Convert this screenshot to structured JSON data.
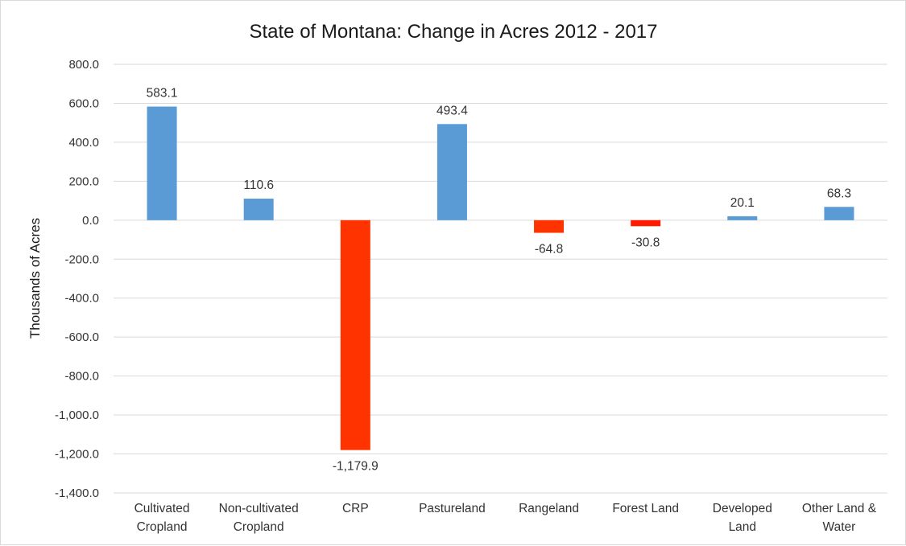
{
  "chart_data": {
    "type": "bar",
    "title": "State of Montana: Change in Acres 2012 - 2017",
    "xlabel": "",
    "ylabel": "Thousands of Acres",
    "ylim": [
      -1400,
      800
    ],
    "ytick_step": 200,
    "y_tick_labels": [
      "800.0",
      "600.0",
      "400.0",
      "200.0",
      "0.0",
      "-200.0",
      "-400.0",
      "-600.0",
      "-800.0",
      "-1,000.0",
      "-1,200.0",
      "-1,400.0"
    ],
    "grid": true,
    "categories": [
      [
        "Cultivated",
        "Cropland"
      ],
      [
        "Non-cultivated",
        "Cropland"
      ],
      [
        "CRP"
      ],
      [
        "Pastureland"
      ],
      [
        "Rangeland"
      ],
      [
        "Forest Land"
      ],
      [
        "Developed",
        "Land"
      ],
      [
        "Other Land &",
        "Water"
      ]
    ],
    "values": [
      583.1,
      110.6,
      -1179.9,
      493.4,
      -64.8,
      -30.8,
      20.1,
      68.3
    ],
    "data_labels": [
      "583.1",
      "110.6",
      "-1,179.9",
      "493.4",
      "-64.8",
      "-30.8",
      "20.1",
      "68.3"
    ],
    "colors": {
      "positive": "#5b9bd5",
      "negative": [
        "#ff3300",
        "#ff3300",
        "#ff3300",
        "#ff0000"
      ]
    },
    "bar_colors": [
      "#5b9bd5",
      "#5b9bd5",
      "#ff3300",
      "#5b9bd5",
      "#ff3300",
      "#ff1a00",
      "#5b9bd5",
      "#5b9bd5"
    ]
  }
}
